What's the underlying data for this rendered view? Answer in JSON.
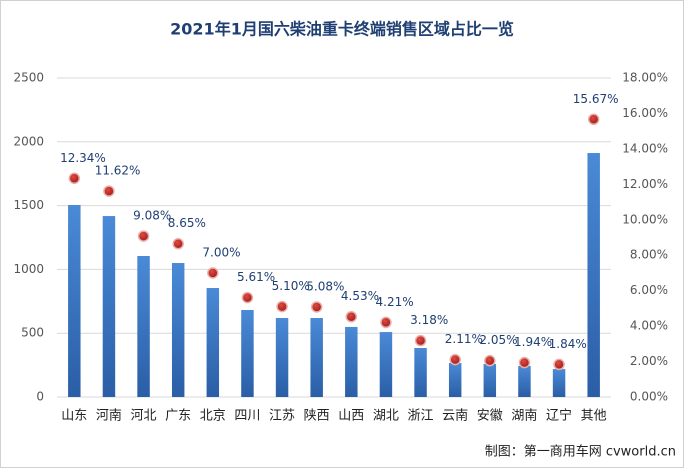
{
  "chart_data": {
    "type": "bar-dot",
    "title": "2021年1月国六柴油重卡终端销售区域占比一览",
    "source": "制图：第一商用车网 cvworld.cn",
    "categories": [
      "山东",
      "河南",
      "河北",
      "广东",
      "北京",
      "四川",
      "江苏",
      "陕西",
      "山西",
      "湖北",
      "浙江",
      "云南",
      "安徽",
      "湖南",
      "辽宁",
      "其他"
    ],
    "series": [
      {
        "type": "bar",
        "color": "#3d7cc9",
        "axis": "y",
        "values": [
          1505,
          1418,
          1105,
          1050,
          854,
          682,
          619,
          619,
          549,
          509,
          384,
          266,
          259,
          243,
          219,
          1912
        ]
      },
      {
        "type": "dot",
        "color": "#c0282b",
        "axis": "y2",
        "values": [
          12.34,
          11.62,
          9.08,
          8.65,
          7.0,
          5.61,
          5.1,
          5.08,
          4.53,
          4.21,
          3.18,
          2.11,
          2.05,
          1.94,
          1.84,
          15.67
        ],
        "value_labels": [
          "12.34%",
          "11.62%",
          "9.08%",
          "8.65%",
          "7.00%",
          "5.61%",
          "5.10%",
          "5.08%",
          "4.53%",
          "4.21%",
          "3.18%",
          "2.11%",
          "2.05%",
          "1.94%",
          "1.84%",
          "15.67%"
        ]
      }
    ],
    "ylim": [
      0,
      2500
    ],
    "yticks": [
      0,
      500,
      1000,
      1500,
      2000,
      2500
    ],
    "y2lim": [
      0,
      18
    ],
    "y2ticks": [
      {
        "value": 0,
        "label": "0.00%"
      },
      {
        "value": 2,
        "label": "2.00%"
      },
      {
        "value": 4,
        "label": "4.00%"
      },
      {
        "value": 6,
        "label": "6.00%"
      },
      {
        "value": 8,
        "label": "8.00%"
      },
      {
        "value": 10,
        "label": "10.00%"
      },
      {
        "value": 12,
        "label": "12.00%"
      },
      {
        "value": 14,
        "label": "14.00%"
      },
      {
        "value": 16,
        "label": "16.00%"
      },
      {
        "value": 18,
        "label": "18.00%"
      }
    ],
    "grid": true
  }
}
